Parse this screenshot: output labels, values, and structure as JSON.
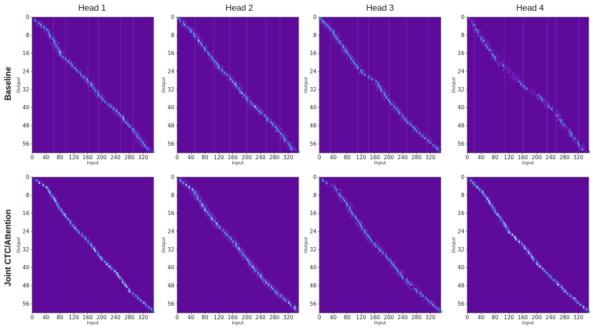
{
  "col_titles": [
    "Head 1",
    "Head 2",
    "Head 3",
    "Head 4"
  ],
  "row_labels": [
    "Baseline",
    "Joint CTC/Attention"
  ],
  "colors": {
    "background": "#5e0a9a",
    "mid": "#7a2cd0",
    "bright": "#2fd3f0",
    "peak": "#8ff5ff"
  },
  "chart_data": {
    "type": "heatmap",
    "colormap": "cool/purple",
    "xlabel": "Input",
    "ylabel": "Output",
    "x_range": [
      0,
      350
    ],
    "y_range": [
      0,
      60
    ],
    "x_ticks": [
      0,
      40,
      80,
      120,
      160,
      200,
      240,
      280,
      320
    ],
    "y_ticks": [
      0,
      8,
      16,
      24,
      32,
      40,
      48,
      56
    ],
    "x_tick_labels": [
      "0",
      "40",
      "80",
      "120",
      "160",
      "200",
      "240",
      "280",
      "320"
    ],
    "y_tick_labels": [
      "0",
      "8",
      "16",
      "24",
      "32",
      "40",
      "48",
      "56"
    ],
    "panels": [
      {
        "row": "Baseline",
        "head": "Head 1",
        "diagonal": [
          [
            0,
            0
          ],
          [
            40,
            5
          ],
          [
            80,
            16
          ],
          [
            120,
            22
          ],
          [
            160,
            28
          ],
          [
            200,
            36
          ],
          [
            240,
            41
          ],
          [
            280,
            48
          ],
          [
            330,
            58
          ]
        ],
        "sharpness": 0.55,
        "vertical_lines": [
          60,
          95,
          160,
          190,
          255,
          290
        ]
      },
      {
        "row": "Baseline",
        "head": "Head 2",
        "diagonal": [
          [
            0,
            0
          ],
          [
            40,
            6
          ],
          [
            80,
            14
          ],
          [
            120,
            22
          ],
          [
            160,
            28
          ],
          [
            200,
            36
          ],
          [
            240,
            42
          ],
          [
            280,
            48
          ],
          [
            330,
            58
          ]
        ],
        "sharpness": 0.6,
        "vertical_lines": [
          50,
          105,
          150,
          200,
          255,
          295
        ]
      },
      {
        "row": "Baseline",
        "head": "Head 3",
        "diagonal": [
          [
            0,
            0
          ],
          [
            40,
            7
          ],
          [
            80,
            16
          ],
          [
            120,
            24
          ],
          [
            160,
            28
          ],
          [
            200,
            37
          ],
          [
            240,
            44
          ],
          [
            280,
            50
          ],
          [
            340,
            58
          ]
        ],
        "sharpness": 0.55,
        "vertical_lines": [
          30,
          110,
          140,
          200,
          250,
          310
        ]
      },
      {
        "row": "Baseline",
        "head": "Head 4",
        "diagonal": [
          [
            0,
            0
          ],
          [
            80,
            18
          ],
          [
            120,
            24
          ],
          [
            160,
            30
          ],
          [
            200,
            34
          ],
          [
            240,
            40
          ],
          [
            280,
            48
          ],
          [
            330,
            58
          ]
        ],
        "sharpness": 0.3,
        "vertical_lines": [
          20,
          105,
          160,
          230,
          255,
          320
        ]
      },
      {
        "row": "Joint CTC/Attention",
        "head": "Head 1",
        "diagonal": [
          [
            0,
            0
          ],
          [
            40,
            4
          ],
          [
            80,
            14
          ],
          [
            120,
            22
          ],
          [
            160,
            28
          ],
          [
            200,
            36
          ],
          [
            240,
            42
          ],
          [
            280,
            50
          ],
          [
            340,
            58
          ]
        ],
        "sharpness": 0.85,
        "vertical_lines": []
      },
      {
        "row": "Joint CTC/Attention",
        "head": "Head 2",
        "diagonal": [
          [
            0,
            0
          ],
          [
            40,
            5
          ],
          [
            80,
            14
          ],
          [
            120,
            22
          ],
          [
            160,
            28
          ],
          [
            200,
            36
          ],
          [
            240,
            44
          ],
          [
            280,
            50
          ],
          [
            340,
            58
          ]
        ],
        "sharpness": 0.7,
        "vertical_lines": []
      },
      {
        "row": "Joint CTC/Attention",
        "head": "Head 3",
        "diagonal": [
          [
            0,
            0
          ],
          [
            40,
            4
          ],
          [
            80,
            12
          ],
          [
            120,
            22
          ],
          [
            160,
            30
          ],
          [
            200,
            36
          ],
          [
            240,
            44
          ],
          [
            280,
            50
          ],
          [
            340,
            58
          ]
        ],
        "sharpness": 0.45,
        "vertical_lines": []
      },
      {
        "row": "Joint CTC/Attention",
        "head": "Head 4",
        "diagonal": [
          [
            0,
            0
          ],
          [
            40,
            6
          ],
          [
            80,
            15
          ],
          [
            120,
            24
          ],
          [
            160,
            30
          ],
          [
            200,
            38
          ],
          [
            240,
            44
          ],
          [
            280,
            50
          ],
          [
            340,
            58
          ]
        ],
        "sharpness": 0.9,
        "vertical_lines": []
      }
    ]
  }
}
